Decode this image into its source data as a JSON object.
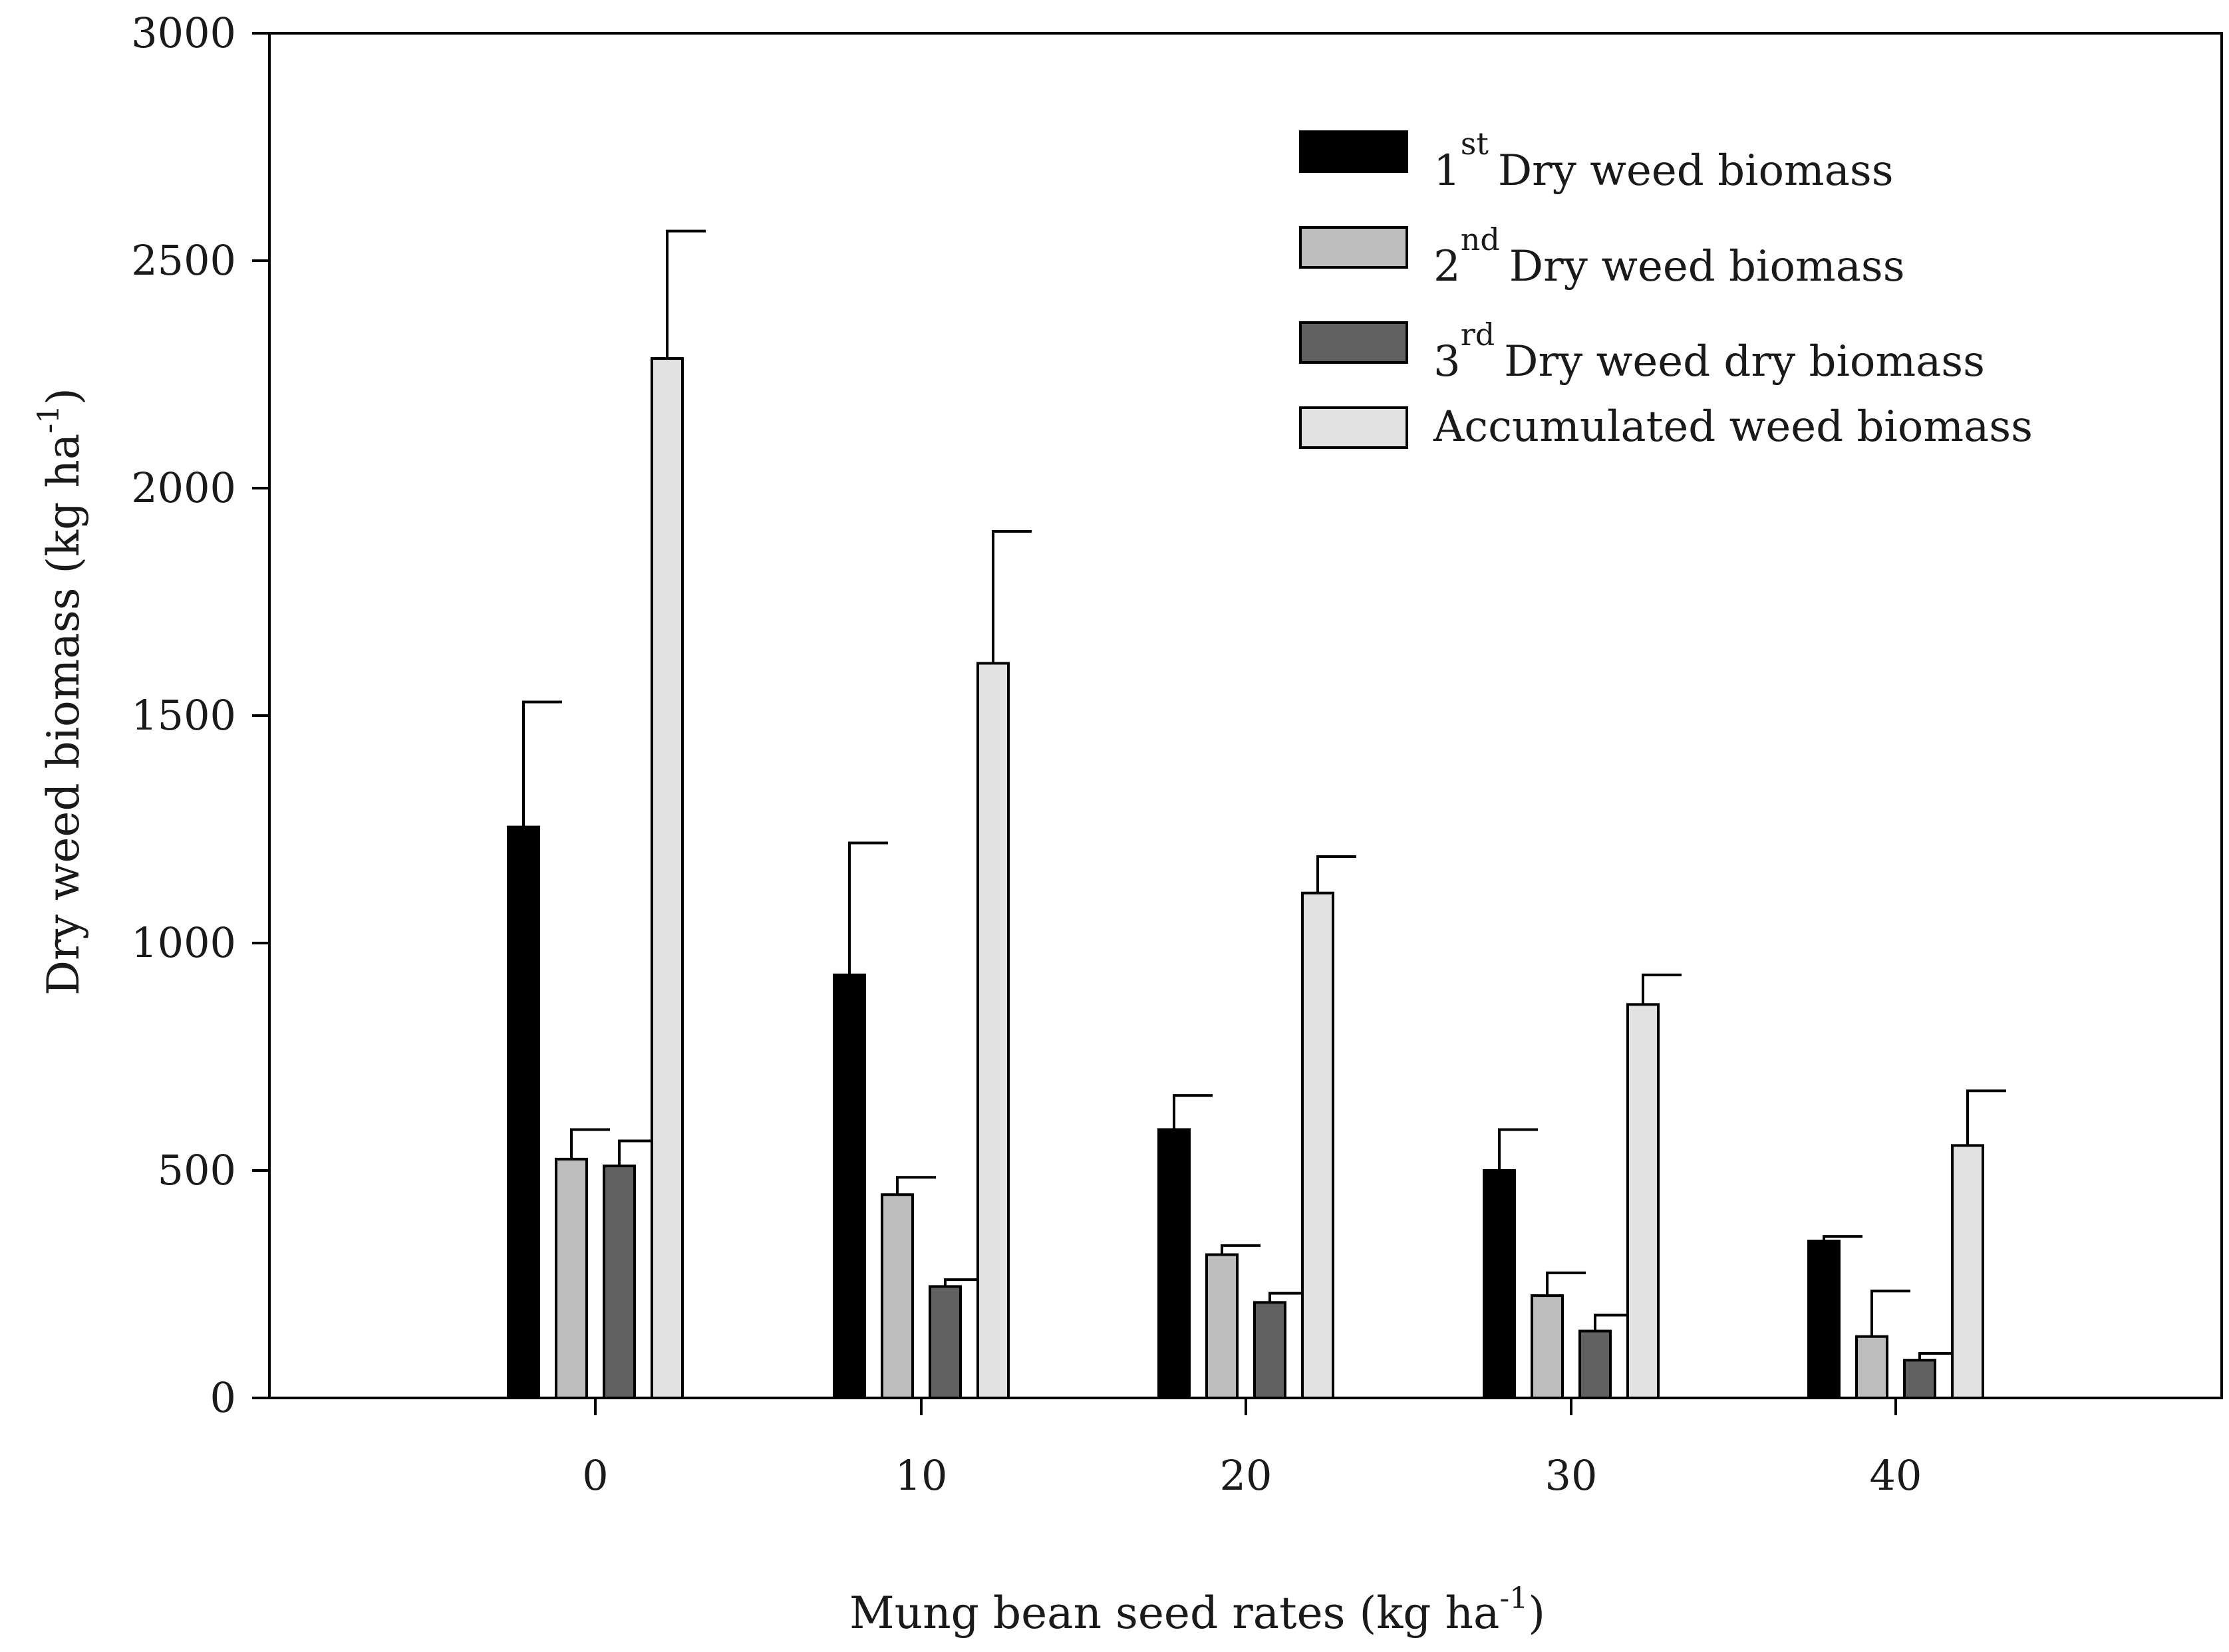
{
  "chart_data": {
    "type": "bar",
    "title": "",
    "xlabel": {
      "main": "Mung bean seed rates (kg  ha",
      "sup": "-1",
      "close": ")"
    },
    "ylabel": {
      "main": "Dry weed biomass (kg ha",
      "sup": "-1",
      "close": ")"
    },
    "ylim": [
      0,
      3000
    ],
    "yticks": [
      0,
      500,
      1000,
      1500,
      2000,
      2500,
      3000
    ],
    "categories": [
      "0",
      "10",
      "20",
      "30",
      "40"
    ],
    "series": [
      {
        "name": "1st Dry weed biomass",
        "legend_prefix": "1",
        "legend_sup": "st",
        "legend_text": "Dry weed biomass",
        "color": "#000000",
        "values": [
          1255,
          930,
          590,
          500,
          345
        ],
        "errors": [
          275,
          290,
          75,
          90,
          10
        ]
      },
      {
        "name": "2nd Dry weed biomass",
        "legend_prefix": "2",
        "legend_sup": "nd",
        "legend_text": "Dry weed biomass",
        "color": "#bdbdbd",
        "values": [
          525,
          447,
          315,
          225,
          135
        ],
        "errors": [
          65,
          38,
          20,
          50,
          100
        ]
      },
      {
        "name": "3rd Dry weed dry biomass",
        "legend_prefix": "3",
        "legend_sup": "rd",
        "legend_text": "Dry weed dry biomass",
        "color": "#616161",
        "values": [
          510,
          245,
          210,
          147,
          83
        ],
        "errors": [
          55,
          15,
          20,
          35,
          15
        ]
      },
      {
        "name": "Accumulated weed biomass",
        "legend_prefix": "",
        "legend_sup": "",
        "legend_text": "Accumulated weed biomass",
        "color": "#e2e2e2",
        "values": [
          2285,
          1615,
          1110,
          865,
          555
        ],
        "errors": [
          280,
          290,
          80,
          65,
          120
        ]
      }
    ],
    "legend_position": "top-right",
    "grid": false
  }
}
